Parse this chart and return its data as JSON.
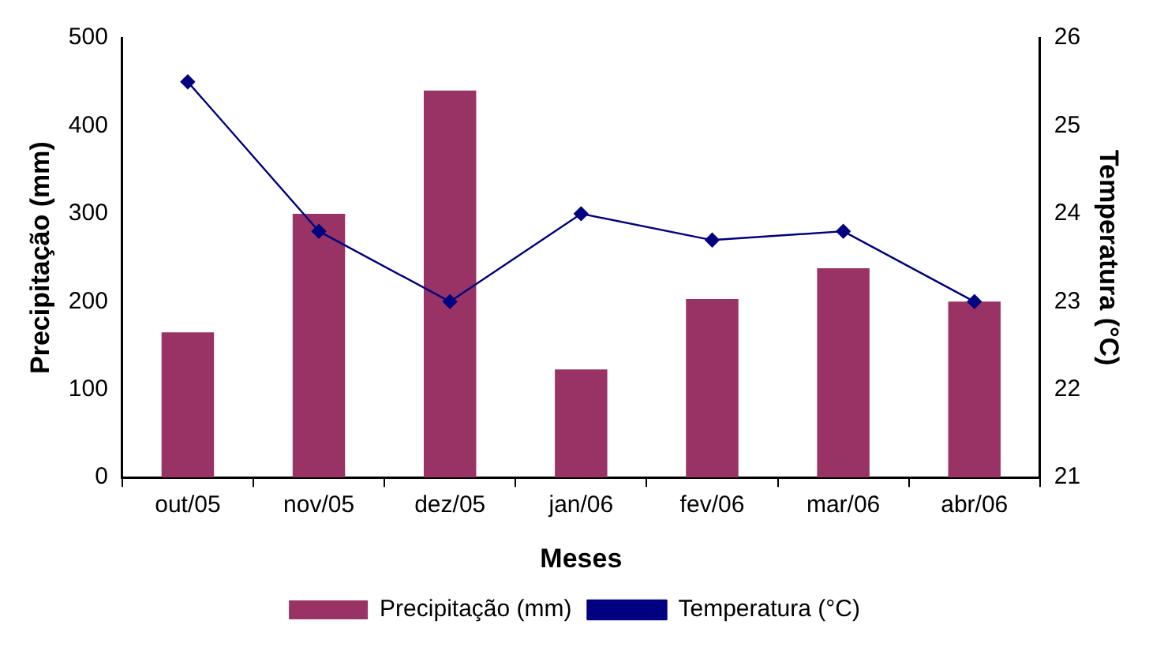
{
  "chart_data": {
    "type": "bar",
    "categories": [
      "out/05",
      "nov/05",
      "dez/05",
      "jan/06",
      "fev/06",
      "mar/06",
      "abr/06"
    ],
    "xlabel": "Meses",
    "ylabel": "Precipitação (mm)",
    "y2label": "Temperatura (°C)",
    "series": [
      {
        "name": "Precipitação (mm)",
        "color": "#993366",
        "values": [
          165,
          300,
          440,
          123,
          203,
          238,
          200
        ]
      },
      {
        "name": "Temperatura (°C)",
        "type": "line",
        "axis": "y2",
        "color": "#000080",
        "marker": "diamond",
        "values": [
          25.5,
          23.8,
          23.0,
          24.0,
          23.7,
          23.8,
          23.0
        ]
      }
    ],
    "ylim": [
      0,
      500
    ],
    "yticks": [
      0,
      100,
      200,
      300,
      400,
      500
    ],
    "y2lim": [
      21,
      26
    ],
    "y2ticks": [
      21,
      22,
      23,
      24,
      25,
      26
    ],
    "grid": false,
    "legend": "bottom"
  }
}
